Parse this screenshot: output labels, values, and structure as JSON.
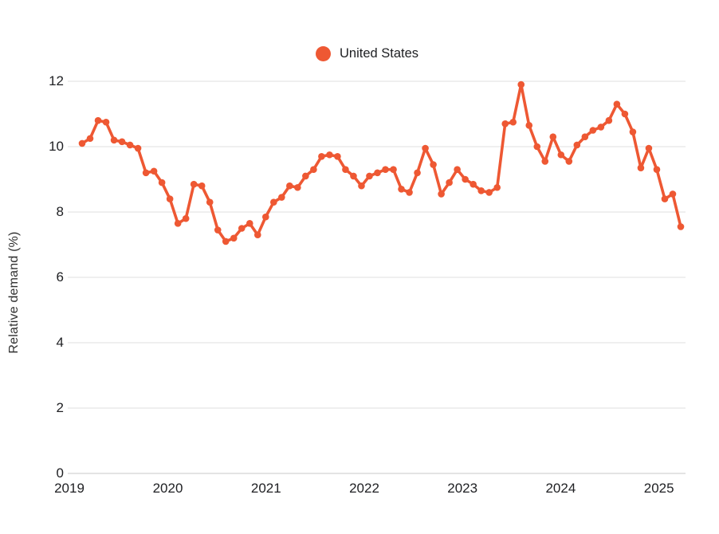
{
  "legend": {
    "label": "United States"
  },
  "chart_data": {
    "type": "line",
    "title": "",
    "xlabel": "",
    "ylabel": "Relative demand (%)",
    "x_start": "2019-01",
    "x_end": "2025-04",
    "x_frequency": "monthly",
    "x_tick_labels": [
      "2019",
      "2020",
      "2021",
      "2022",
      "2023",
      "2024",
      "2025"
    ],
    "y_ticks": [
      0,
      2,
      4,
      6,
      8,
      10,
      12
    ],
    "ylim": [
      0,
      12
    ],
    "grid": true,
    "legend_position": "top-center",
    "marker": "circle",
    "line_color": "#EE5833",
    "gridline_color": "#e5e5e5",
    "baseline_color": "#d4d4d4",
    "series": [
      {
        "name": "United States",
        "color": "#EE5833",
        "values": [
          10.1,
          10.25,
          10.8,
          10.75,
          10.2,
          10.15,
          10.05,
          9.95,
          9.2,
          9.25,
          8.9,
          8.4,
          7.65,
          7.8,
          8.85,
          8.8,
          8.3,
          7.45,
          7.1,
          7.2,
          7.5,
          7.65,
          7.3,
          7.85,
          8.3,
          8.45,
          8.8,
          8.75,
          9.1,
          9.3,
          9.7,
          9.75,
          9.7,
          9.3,
          9.1,
          8.8,
          9.1,
          9.2,
          9.3,
          9.3,
          8.7,
          8.6,
          9.2,
          9.95,
          9.45,
          8.55,
          8.9,
          9.3,
          9.0,
          8.85,
          8.65,
          8.6,
          8.75,
          10.7,
          10.75,
          11.9,
          10.65,
          10.0,
          9.55,
          10.3,
          9.75,
          9.55,
          10.05,
          10.3,
          10.5,
          10.6,
          10.8,
          11.3,
          11.0,
          10.45,
          9.35,
          9.95,
          9.3,
          8.4,
          8.55,
          7.55
        ]
      }
    ]
  }
}
